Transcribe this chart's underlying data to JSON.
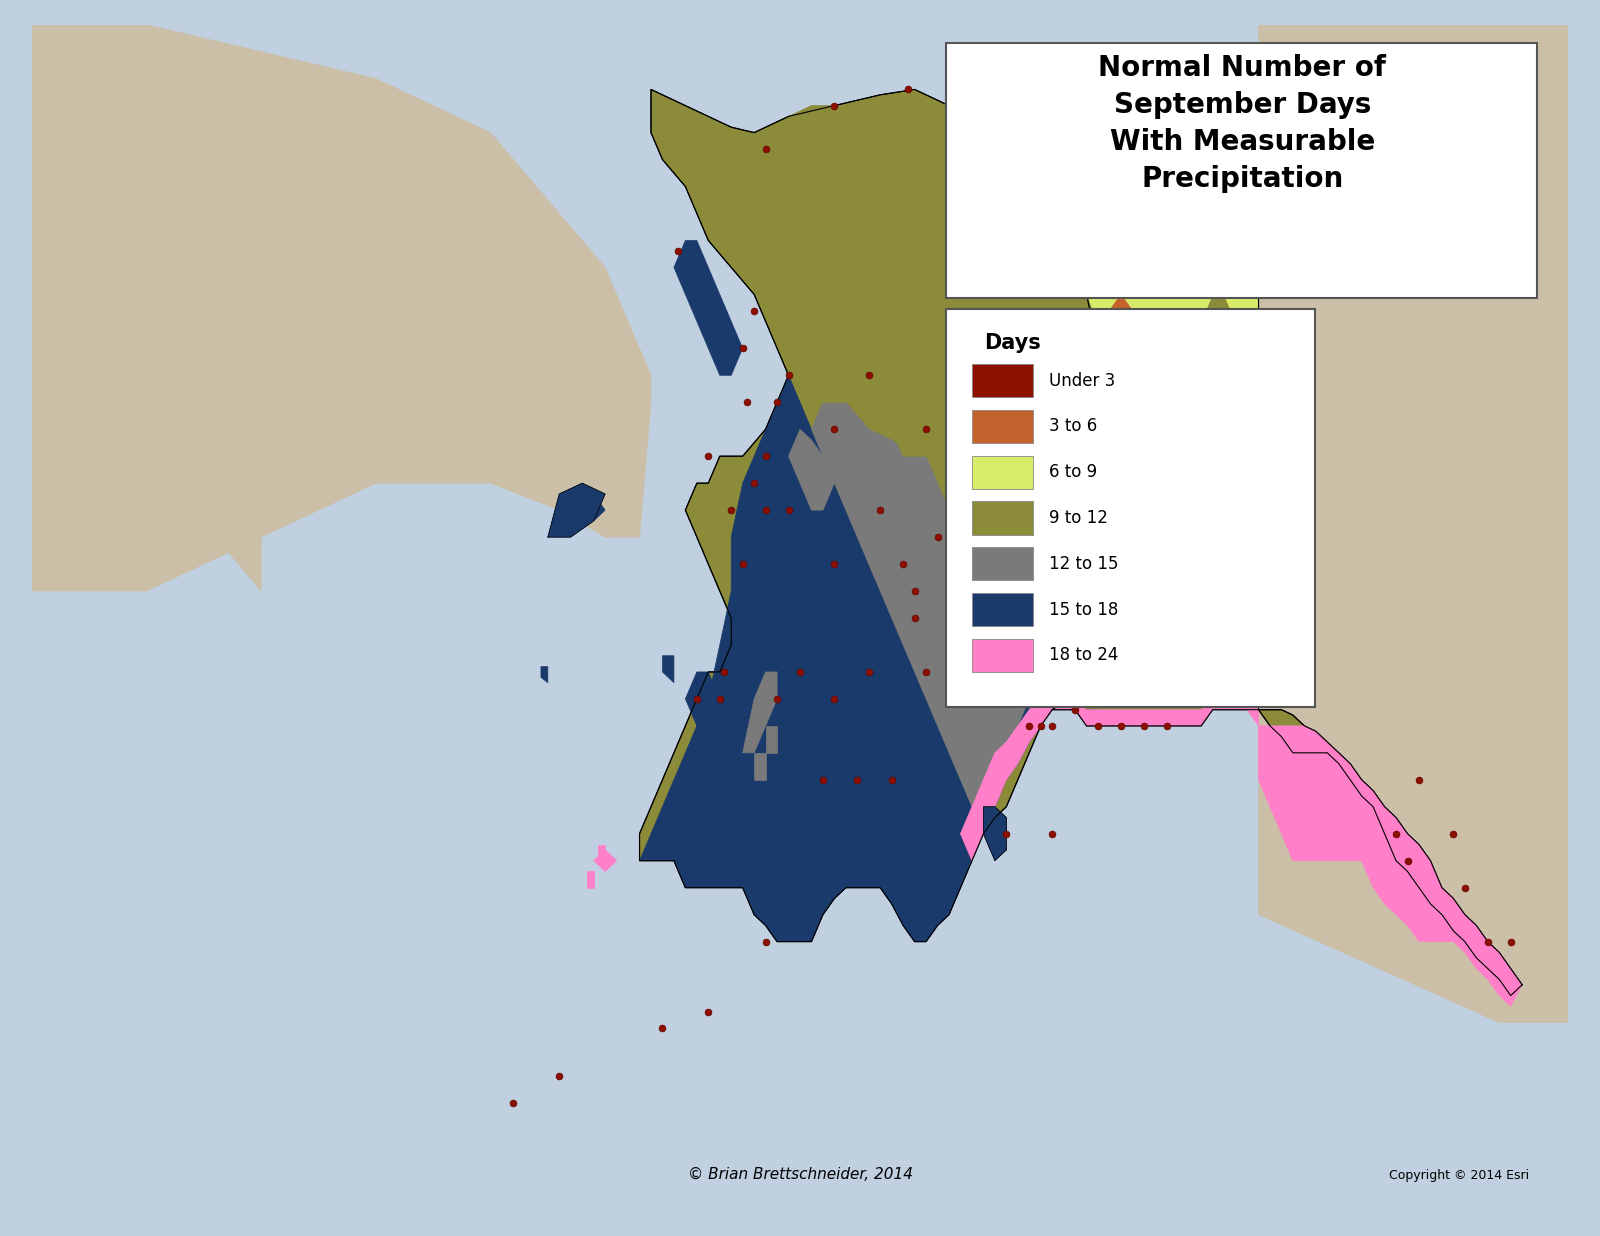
{
  "title": "Normal Number of\nSeptember Days\nWith Measurable\nPrecipitation",
  "title_fontsize": 20,
  "title_fontweight": "bold",
  "legend_title": "Days",
  "legend_title_fontsize": 15,
  "legend_title_fontweight": "bold",
  "legend_labels": [
    "Under 3",
    "3 to 6",
    "6 to 9",
    "9 to 12",
    "12 to 15",
    "15 to 18",
    "18 to 24"
  ],
  "legend_colors": [
    "#8B1000",
    "#C4622D",
    "#D8EC6A",
    "#8B8B3A",
    "#7A7A7A",
    "#1A3A6B",
    "#FF80C8"
  ],
  "copyright_text": "© Brian Brettschneider, 2014",
  "copyright_text2": "Copyright © 2014 Esri",
  "background_ocean_color": "#A8C8DC",
  "background_land_color": "#CBBFA8",
  "border_color": "black",
  "station_dot_color": "#8B1000",
  "station_dot_size": 5,
  "xlim": [
    -195,
    -128
  ],
  "ylim": [
    50.5,
    72.5
  ],
  "figsize": [
    16.0,
    12.36
  ]
}
